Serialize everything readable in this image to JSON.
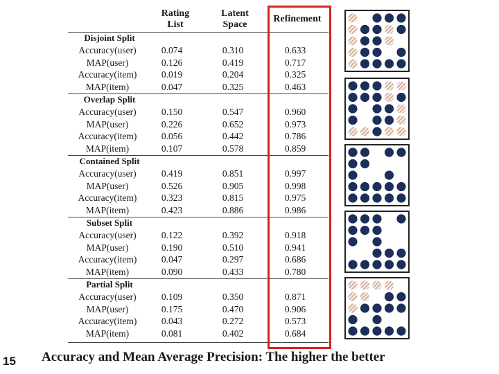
{
  "headers": {
    "rating_list": "Rating\nList",
    "latent_space": "Latent\nSpace",
    "refinement": "Refinement"
  },
  "groups": [
    {
      "title": "Disjoint Split",
      "rows": [
        {
          "metric": "Accuracy(user)",
          "rating": "0.074",
          "latent": "0.310",
          "refinement": "0.633"
        },
        {
          "metric": "MAP(user)",
          "rating": "0.126",
          "latent": "0.419",
          "refinement": "0.717"
        },
        {
          "metric": "Accuracy(item)",
          "rating": "0.019",
          "latent": "0.204",
          "refinement": "0.325"
        },
        {
          "metric": "MAP(item)",
          "rating": "0.047",
          "latent": "0.325",
          "refinement": "0.463"
        }
      ]
    },
    {
      "title": "Overlap Split",
      "rows": [
        {
          "metric": "Accuracy(user)",
          "rating": "0.150",
          "latent": "0.547",
          "refinement": "0.960"
        },
        {
          "metric": "MAP(user)",
          "rating": "0.226",
          "latent": "0.652",
          "refinement": "0.973"
        },
        {
          "metric": "Accuracy(item)",
          "rating": "0.056",
          "latent": "0.442",
          "refinement": "0.786"
        },
        {
          "metric": "MAP(item)",
          "rating": "0.107",
          "latent": "0.578",
          "refinement": "0.859"
        }
      ]
    },
    {
      "title": "Contained Split",
      "rows": [
        {
          "metric": "Accuracy(user)",
          "rating": "0.419",
          "latent": "0.851",
          "refinement": "0.997"
        },
        {
          "metric": "MAP(user)",
          "rating": "0.526",
          "latent": "0.905",
          "refinement": "0.998"
        },
        {
          "metric": "Accuracy(item)",
          "rating": "0.323",
          "latent": "0.815",
          "refinement": "0.975"
        },
        {
          "metric": "MAP(item)",
          "rating": "0.423",
          "latent": "0.886",
          "refinement": "0.986"
        }
      ]
    },
    {
      "title": "Subset Split",
      "rows": [
        {
          "metric": "Accuracy(user)",
          "rating": "0.122",
          "latent": "0.392",
          "refinement": "0.918"
        },
        {
          "metric": "MAP(user)",
          "rating": "0.190",
          "latent": "0.510",
          "refinement": "0.941"
        },
        {
          "metric": "Accuracy(item)",
          "rating": "0.047",
          "latent": "0.297",
          "refinement": "0.686"
        },
        {
          "metric": "MAP(item)",
          "rating": "0.090",
          "latent": "0.433",
          "refinement": "0.780"
        }
      ]
    },
    {
      "title": "Partial Split",
      "rows": [
        {
          "metric": "Accuracy(user)",
          "rating": "0.109",
          "latent": "0.350",
          "refinement": "0.871"
        },
        {
          "metric": "MAP(user)",
          "rating": "0.175",
          "latent": "0.470",
          "refinement": "0.906"
        },
        {
          "metric": "Accuracy(item)",
          "rating": "0.043",
          "latent": "0.272",
          "refinement": "0.573"
        },
        {
          "metric": "MAP(item)",
          "rating": "0.081",
          "latent": "0.402",
          "refinement": "0.684"
        }
      ]
    }
  ],
  "caption": "Accuracy and Mean Average Precision: The higher the better",
  "page_number": "15",
  "colors": {
    "highlight": "#d8221c",
    "dot_navy": "#1c2f5a",
    "dot_tan": "#d9b49a"
  },
  "split_diagrams": [
    {
      "name": "disjoint",
      "cells": [
        "T.NNN",
        "TNNTN",
        "TNNT.",
        "TNN.N",
        "TNNNN"
      ]
    },
    {
      "name": "overlap",
      "cells": [
        "NNNTT",
        "NNNTN",
        "N.NNT",
        "N.NNT",
        "TTNTT"
      ]
    },
    {
      "name": "contained",
      "cells": [
        "NN.NN",
        "NN...",
        "N..N.",
        "NNNNN",
        "NNNNN"
      ]
    },
    {
      "name": "subset",
      "cells": [
        "NNN.N",
        "NNN..",
        "N.N..",
        "..NNN",
        "NNNNN"
      ]
    },
    {
      "name": "partial",
      "cells": [
        "TTTT.",
        "TT.NN",
        "TNNNN",
        "N.N..",
        "NNNNN"
      ]
    }
  ]
}
